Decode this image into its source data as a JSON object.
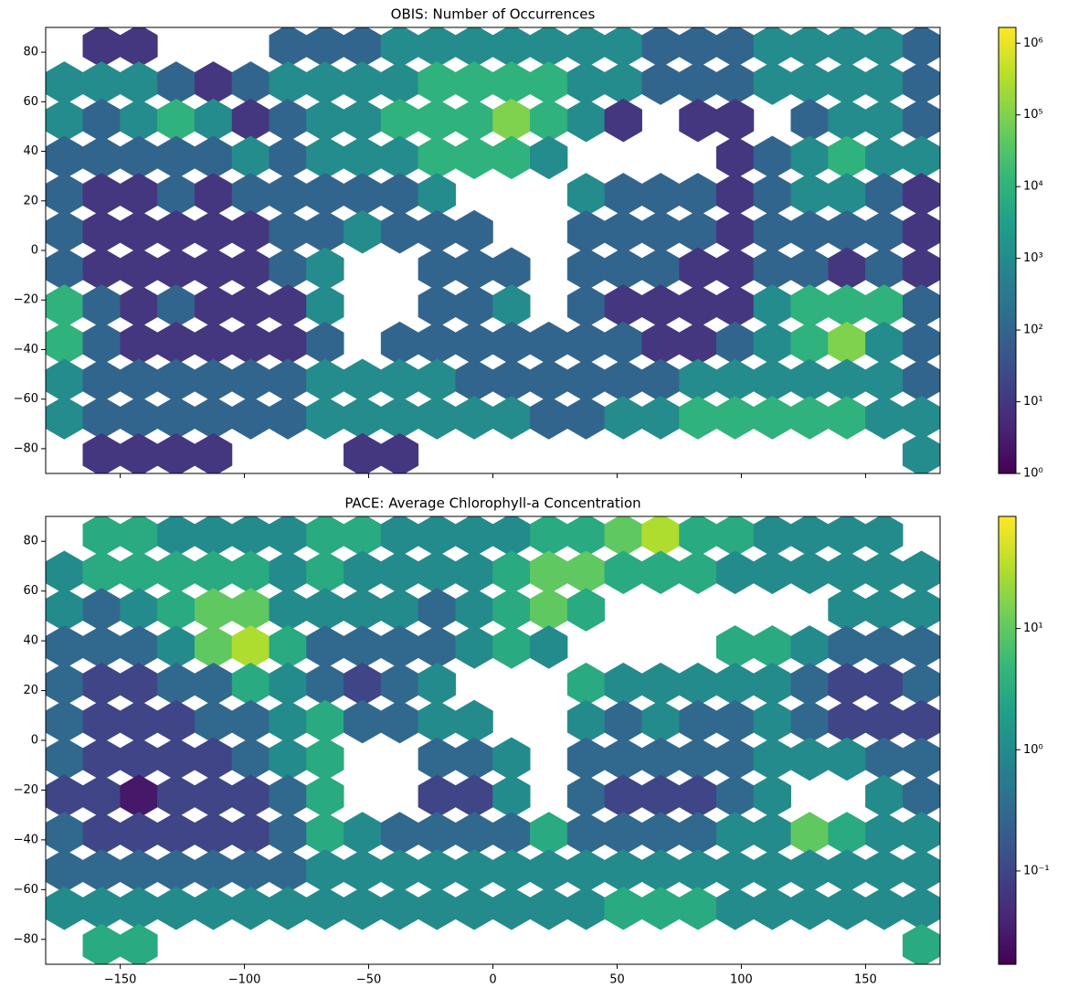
{
  "chart_data": [
    {
      "type": "hexbin",
      "title": "OBIS: Number of Occurrences",
      "colormap": "viridis",
      "color_scale": "log",
      "x": [
        -172.5,
        -157.5,
        -142.5,
        -127.5,
        -112.5,
        -97.5,
        -82.5,
        -67.5,
        -52.5,
        -37.5,
        -22.5,
        -7.5,
        7.5,
        22.5,
        37.5,
        52.5,
        67.5,
        82.5,
        97.5,
        112.5,
        127.5,
        142.5,
        157.5,
        172.5
      ],
      "y": [
        82.5,
        67.5,
        52.5,
        37.5,
        22.5,
        7.5,
        -7.5,
        -22.5,
        -37.5,
        -52.5,
        -67.5,
        -82.5
      ],
      "values": [
        [
          null,
          10,
          10,
          null,
          null,
          null,
          100,
          100,
          100,
          1000,
          1000,
          1000,
          1000,
          1000,
          1000,
          1000,
          100,
          100,
          100,
          1000,
          1000,
          1000,
          1000,
          100
        ],
        [
          1000,
          1000,
          1000,
          100,
          10,
          100,
          1000,
          1000,
          1000,
          1000,
          10000,
          10000,
          10000,
          10000,
          1000,
          1000,
          100,
          100,
          100,
          1000,
          1000,
          1000,
          1000,
          100
        ],
        [
          1000,
          100,
          1000,
          10000,
          1000,
          10,
          100,
          1000,
          1000,
          10000,
          10000,
          10000,
          100000,
          10000,
          1000,
          10,
          null,
          10,
          10,
          null,
          100,
          1000,
          1000,
          100
        ],
        [
          100,
          100,
          100,
          100,
          100,
          1000,
          100,
          1000,
          1000,
          1000,
          10000,
          10000,
          10000,
          1000,
          null,
          null,
          null,
          null,
          10,
          100,
          1000,
          10000,
          1000,
          1000
        ],
        [
          100,
          10,
          10,
          100,
          10,
          100,
          100,
          100,
          100,
          100,
          1000,
          null,
          null,
          null,
          1000,
          100,
          100,
          100,
          10,
          100,
          1000,
          1000,
          100,
          10
        ],
        [
          100,
          10,
          10,
          10,
          10,
          10,
          100,
          100,
          1000,
          100,
          100,
          100,
          null,
          null,
          100,
          100,
          100,
          100,
          10,
          100,
          100,
          100,
          100,
          10
        ],
        [
          100,
          10,
          10,
          10,
          10,
          10,
          100,
          1000,
          null,
          null,
          100,
          100,
          100,
          null,
          100,
          100,
          100,
          10,
          10,
          100,
          100,
          10,
          100,
          10
        ],
        [
          10000,
          100,
          10,
          100,
          10,
          10,
          10,
          1000,
          null,
          null,
          100,
          100,
          1000,
          null,
          100,
          10,
          10,
          10,
          10,
          1000,
          10000,
          10000,
          10000,
          100
        ],
        [
          10000,
          100,
          10,
          10,
          10,
          10,
          10,
          100,
          null,
          100,
          100,
          100,
          100,
          100,
          100,
          100,
          10,
          10,
          100,
          1000,
          10000,
          100000,
          1000,
          100
        ],
        [
          1000,
          100,
          100,
          100,
          100,
          100,
          100,
          1000,
          1000,
          1000,
          1000,
          100,
          100,
          100,
          100,
          100,
          100,
          1000,
          1000,
          1000,
          1000,
          1000,
          1000,
          100
        ],
        [
          1000,
          100,
          100,
          100,
          100,
          100,
          100,
          1000,
          1000,
          1000,
          1000,
          1000,
          1000,
          100,
          100,
          1000,
          1000,
          10000,
          10000,
          10000,
          10000,
          10000,
          1000,
          1000
        ],
        [
          null,
          10,
          10,
          10,
          10,
          null,
          null,
          null,
          10,
          10,
          null,
          null,
          null,
          null,
          null,
          null,
          null,
          null,
          null,
          null,
          null,
          null,
          null,
          1000
        ]
      ],
      "xlim": [
        -180,
        180
      ],
      "ylim": [
        -90,
        90
      ],
      "xticks": [
        -150,
        -100,
        -50,
        0,
        50,
        100,
        150
      ],
      "yticks": [
        {
          "value": -80,
          "label": "−80"
        },
        {
          "value": -60,
          "label": "−60"
        },
        {
          "value": -40,
          "label": "−40"
        },
        {
          "value": -20,
          "label": "−20"
        },
        0,
        20,
        40,
        60,
        80
      ],
      "clim": [
        1,
        1660000
      ],
      "cticks": [
        {
          "value": 1,
          "label": "10⁰"
        },
        {
          "value": 10,
          "label": "10¹"
        },
        {
          "value": 100,
          "label": "10²"
        },
        {
          "value": 1000,
          "label": "10³"
        },
        {
          "value": 10000,
          "label": "10⁴"
        },
        {
          "value": 100000,
          "label": "10⁵"
        },
        {
          "value": 1000000,
          "label": "10⁶"
        }
      ]
    },
    {
      "type": "hexbin",
      "title": "PACE: Average Chlorophyll-a Concentration",
      "colormap": "viridis",
      "color_scale": "log",
      "x": [
        -172.5,
        -157.5,
        -142.5,
        -127.5,
        -112.5,
        -97.5,
        -82.5,
        -67.5,
        -52.5,
        -37.5,
        -22.5,
        -7.5,
        7.5,
        22.5,
        37.5,
        52.5,
        67.5,
        82.5,
        97.5,
        112.5,
        127.5,
        142.5,
        157.5,
        172.5
      ],
      "y": [
        82.5,
        67.5,
        52.5,
        37.5,
        22.5,
        7.5,
        -7.5,
        -22.5,
        -37.5,
        -52.5,
        -67.5,
        -82.5
      ],
      "values": [
        [
          null,
          3,
          3,
          1,
          1,
          1,
          1,
          3,
          3,
          1,
          1,
          1,
          1,
          3,
          3,
          10,
          30,
          3,
          3,
          1,
          1,
          1,
          1,
          null
        ],
        [
          1,
          3,
          3,
          3,
          3,
          3,
          1,
          3,
          1,
          1,
          1,
          1,
          3,
          10,
          10,
          3,
          3,
          3,
          1,
          1,
          1,
          1,
          1,
          1
        ],
        [
          1,
          0.3,
          1,
          3,
          10,
          10,
          1,
          1,
          1,
          1,
          0.3,
          1,
          3,
          10,
          3,
          null,
          null,
          null,
          null,
          null,
          null,
          1,
          1,
          1
        ],
        [
          0.3,
          0.3,
          0.3,
          1,
          10,
          30,
          3,
          0.3,
          0.3,
          0.3,
          0.3,
          1,
          3,
          1,
          null,
          null,
          null,
          null,
          3,
          3,
          1,
          0.3,
          0.3,
          0.3
        ],
        [
          0.3,
          0.1,
          0.1,
          0.3,
          0.3,
          3,
          1,
          0.3,
          0.1,
          0.3,
          1,
          null,
          null,
          null,
          3,
          1,
          1,
          1,
          1,
          1,
          0.3,
          0.1,
          0.1,
          0.3
        ],
        [
          0.3,
          0.1,
          0.1,
          0.1,
          0.3,
          0.3,
          1,
          3,
          0.3,
          0.3,
          1,
          1,
          null,
          null,
          1,
          0.3,
          1,
          0.3,
          0.3,
          1,
          0.3,
          0.1,
          0.1,
          0.1
        ],
        [
          0.3,
          0.1,
          0.1,
          0.1,
          0.1,
          0.3,
          1,
          3,
          null,
          null,
          0.3,
          0.3,
          1,
          null,
          0.3,
          0.3,
          0.3,
          0.3,
          0.3,
          1,
          1,
          1,
          0.3,
          0.3
        ],
        [
          0.1,
          0.1,
          0.03,
          0.1,
          0.1,
          0.1,
          0.3,
          3,
          null,
          null,
          0.1,
          0.1,
          1,
          null,
          0.3,
          0.1,
          0.1,
          0.1,
          0.3,
          1,
          null,
          null,
          1,
          0.3
        ],
        [
          0.3,
          0.1,
          0.1,
          0.1,
          0.1,
          0.1,
          0.3,
          3,
          1,
          0.3,
          0.3,
          0.3,
          0.3,
          3,
          0.3,
          0.3,
          0.3,
          0.3,
          1,
          1,
          10,
          3,
          1,
          1
        ],
        [
          0.3,
          0.3,
          0.3,
          0.3,
          0.3,
          0.3,
          0.3,
          1,
          1,
          1,
          1,
          1,
          1,
          1,
          1,
          1,
          1,
          1,
          1,
          1,
          1,
          1,
          1,
          1
        ],
        [
          1,
          1,
          1,
          1,
          1,
          1,
          1,
          1,
          1,
          1,
          1,
          1,
          1,
          1,
          1,
          3,
          3,
          3,
          1,
          1,
          1,
          1,
          1,
          1
        ],
        [
          null,
          3,
          3,
          null,
          null,
          null,
          null,
          null,
          null,
          null,
          null,
          null,
          null,
          null,
          null,
          null,
          null,
          null,
          null,
          null,
          null,
          null,
          null,
          3
        ]
      ],
      "xlim": [
        -180,
        180
      ],
      "ylim": [
        -90,
        90
      ],
      "xticks": [
        {
          "value": -150,
          "label": "−150"
        },
        {
          "value": -100,
          "label": "−100"
        },
        {
          "value": -50,
          "label": "−50"
        },
        0,
        50,
        100,
        150
      ],
      "yticks": [
        {
          "value": -80,
          "label": "−80"
        },
        {
          "value": -60,
          "label": "−60"
        },
        {
          "value": -40,
          "label": "−40"
        },
        {
          "value": -20,
          "label": "−20"
        },
        0,
        20,
        40,
        60,
        80
      ],
      "clim": [
        0.017,
        84
      ],
      "cticks": [
        {
          "value": 0.1,
          "label": "10⁻¹"
        },
        {
          "value": 1,
          "label": "10⁰"
        },
        {
          "value": 10,
          "label": "10¹"
        }
      ]
    }
  ]
}
